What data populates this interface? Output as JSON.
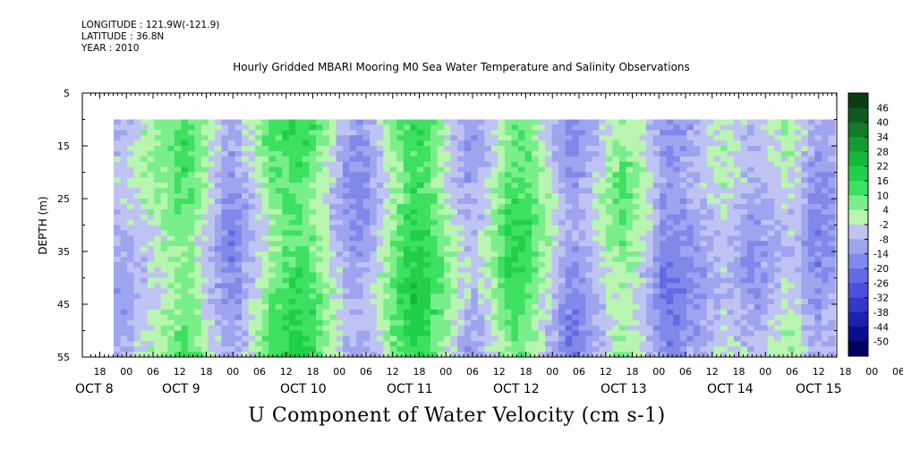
{
  "header": {
    "longitude": "LONGITUDE : 121.9W(-121.9)",
    "latitude": "LATITUDE : 36.8N",
    "year": "YEAR : 2010"
  },
  "chart_data": {
    "type": "heatmap",
    "title": "Hourly Gridded MBARI Mooring M0 Sea Water Temperature and Salinity Observations",
    "bottom_title": "U Component of Water Velocity (cm s-1)",
    "ylabel": "DEPTH (m)",
    "yticks": [
      5,
      15,
      25,
      35,
      45,
      55
    ],
    "ylim": [
      55,
      5
    ],
    "x_hour_labels": [
      "18",
      "00",
      "06",
      "12",
      "18",
      "00",
      "06",
      "12",
      "18",
      "00",
      "06",
      "12",
      "18",
      "00",
      "06",
      "12",
      "18",
      "00",
      "06",
      "12",
      "18",
      "00",
      "06",
      "12",
      "18",
      "00",
      "06",
      "12",
      "18",
      "00",
      "06",
      "12"
    ],
    "x_day_labels": [
      "OCT  8",
      "OCT  9",
      "OCT 10",
      "OCT 11",
      "OCT 12",
      "OCT 13",
      "OCT 14",
      "OCT 15"
    ],
    "x_day_label_main": "OCT",
    "colorbar_levels": [
      "46",
      "40",
      "34",
      "28",
      "22",
      "16",
      "10",
      "4",
      "-2",
      "-8",
      "-14",
      "-20",
      "-26",
      "-32",
      "-38",
      "-44",
      "-50"
    ],
    "colorbar_colors": [
      "#0a3d14",
      "#0f5a1f",
      "#127a28",
      "#139a30",
      "#16b83a",
      "#20d048",
      "#3ee060",
      "#7aee8a",
      "#b8f5b0",
      "#bfc3f2",
      "#9ea4ee",
      "#8088ea",
      "#646ae4",
      "#4a50dc",
      "#3238cc",
      "#1c22b0",
      "#0a0e8a",
      "#000060"
    ],
    "data_depth_top": 10,
    "data_depth_bottom": 55,
    "columns_vs_time": [
      -8,
      -8,
      -6,
      -4,
      -2,
      0,
      2,
      4,
      6,
      8,
      10,
      8,
      4,
      0,
      -4,
      -8,
      -12,
      -14,
      -12,
      -8,
      -4,
      0,
      4,
      8,
      10,
      12,
      14,
      14,
      12,
      10,
      6,
      2,
      -2,
      -6,
      -10,
      -12,
      -12,
      -10,
      -6,
      -2,
      2,
      6,
      10,
      14,
      16,
      16,
      14,
      10,
      6,
      2,
      -2,
      -6,
      -8,
      -8,
      -6,
      -2,
      2,
      6,
      10,
      12,
      12,
      10,
      6,
      2,
      -2,
      -6,
      -10,
      -14,
      -14,
      -12,
      -10,
      -6,
      -2,
      2,
      4,
      6,
      4,
      2,
      -2,
      -6,
      -10,
      -14,
      -16,
      -16,
      -14,
      -12,
      -10,
      -8,
      -6,
      -4,
      -2,
      -4,
      -6,
      -8,
      -10,
      -10,
      -8,
      -6,
      -4,
      -2,
      -2,
      -4,
      -8,
      -12,
      -14,
      -12,
      -10
    ]
  }
}
